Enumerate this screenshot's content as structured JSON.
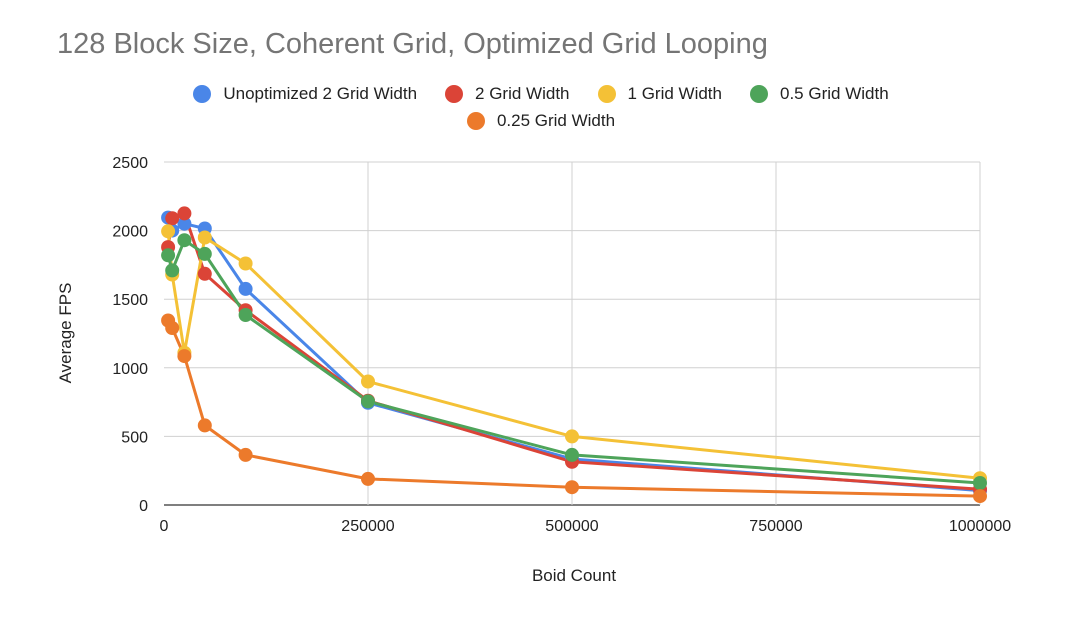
{
  "chart_data": {
    "type": "line",
    "title": "128 Block Size, Coherent Grid, Optimized Grid Looping",
    "xlabel": "Boid Count",
    "ylabel": "Average FPS",
    "xlim": [
      0,
      1000000
    ],
    "ylim": [
      0,
      2500
    ],
    "xticks": [
      "0",
      "250000",
      "500000",
      "750000",
      "1000000"
    ],
    "yticks": [
      "0",
      "500",
      "1000",
      "1500",
      "2000",
      "2500"
    ],
    "grid": true,
    "legend_position": "top",
    "series": [
      {
        "name": "Unoptimized 2 Grid Width",
        "color": "#4a86e8",
        "points": [
          [
            5000,
            2095
          ],
          [
            10000,
            2000
          ],
          [
            25000,
            2050
          ],
          [
            50000,
            2015
          ],
          [
            100000,
            1575
          ],
          [
            250000,
            745
          ],
          [
            500000,
            335
          ],
          [
            1000000,
            105
          ]
        ]
      },
      {
        "name": "2 Grid Width",
        "color": "#db4437",
        "points": [
          [
            5000,
            1880
          ],
          [
            10000,
            2090
          ],
          [
            25000,
            2125
          ],
          [
            50000,
            1685
          ],
          [
            100000,
            1420
          ],
          [
            250000,
            760
          ],
          [
            500000,
            315
          ],
          [
            1000000,
            115
          ]
        ]
      },
      {
        "name": "1 Grid Width",
        "color": "#f4c136",
        "points": [
          [
            5000,
            1995
          ],
          [
            10000,
            1680
          ],
          [
            25000,
            1110
          ],
          [
            50000,
            1950
          ],
          [
            100000,
            1760
          ],
          [
            250000,
            900
          ],
          [
            500000,
            500
          ],
          [
            1000000,
            195
          ]
        ]
      },
      {
        "name": "0.5 Grid Width",
        "color": "#4ea45a",
        "points": [
          [
            5000,
            1820
          ],
          [
            10000,
            1710
          ],
          [
            25000,
            1930
          ],
          [
            50000,
            1830
          ],
          [
            100000,
            1385
          ],
          [
            250000,
            755
          ],
          [
            500000,
            365
          ],
          [
            1000000,
            160
          ]
        ]
      },
      {
        "name": "0.25 Grid Width",
        "color": "#ec7a2b",
        "points": [
          [
            5000,
            1345
          ],
          [
            10000,
            1290
          ],
          [
            25000,
            1085
          ],
          [
            50000,
            580
          ],
          [
            100000,
            365
          ],
          [
            250000,
            190
          ],
          [
            500000,
            130
          ],
          [
            1000000,
            65
          ]
        ]
      }
    ]
  }
}
